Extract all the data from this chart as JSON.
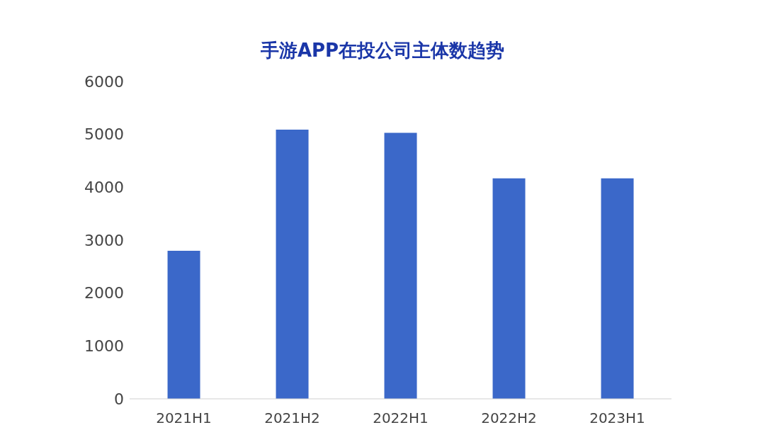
{
  "chart_data": {
    "type": "bar",
    "title": "手游APP在投公司主体数趋势",
    "categories": [
      "2021H1",
      "2021H2",
      "2022H1",
      "2022H2",
      "2023H1"
    ],
    "values": [
      2800,
      5090,
      5030,
      4170,
      4170
    ],
    "color": "#3b68c9",
    "ylim": [
      0,
      6000
    ],
    "yticks": [
      0,
      1000,
      2000,
      3000,
      4000,
      5000,
      6000
    ],
    "grid": false
  }
}
